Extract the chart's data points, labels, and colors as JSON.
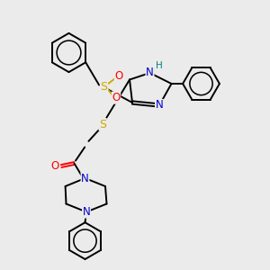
{
  "bg_color": "#ebebeb",
  "atoms": {
    "colors": {
      "C": "#000000",
      "N": "#0000cc",
      "O": "#ff0000",
      "S": "#ccaa00",
      "H": "#008080"
    }
  },
  "figsize": [
    3.0,
    3.0
  ],
  "dpi": 100
}
